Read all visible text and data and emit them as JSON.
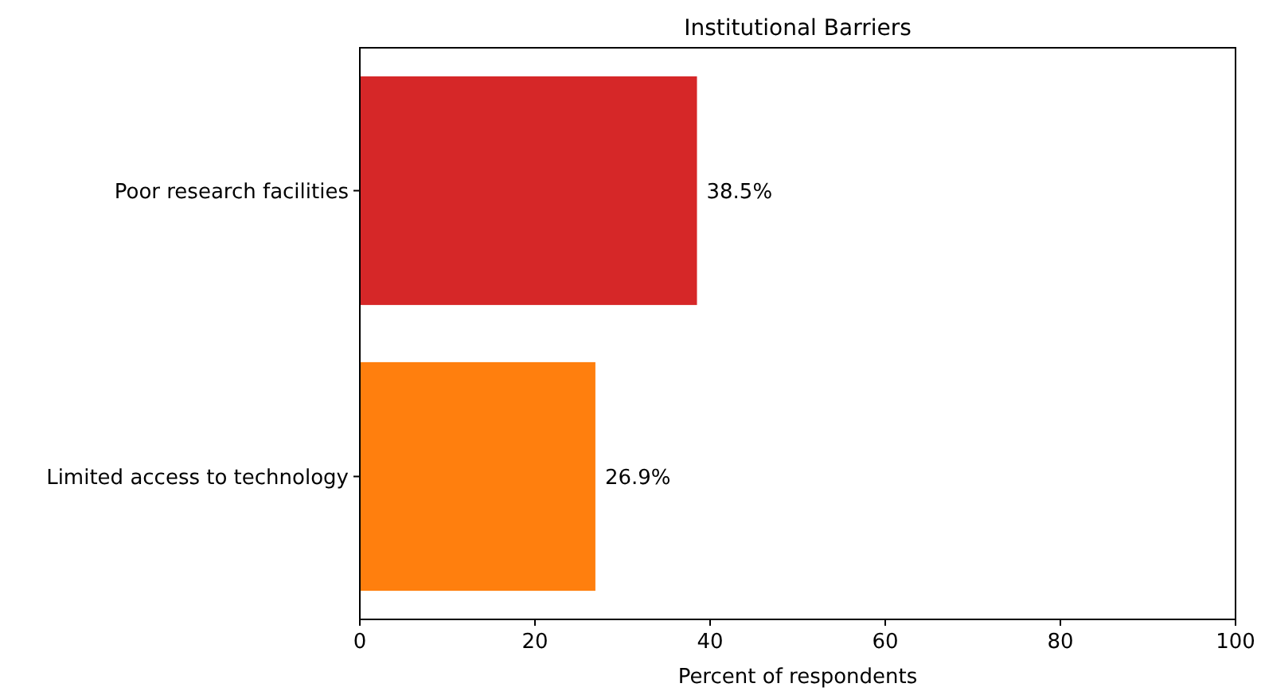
{
  "chart_data": {
    "type": "bar",
    "orientation": "horizontal",
    "title": "Institutional Barriers",
    "xlabel": "Percent of respondents",
    "categories": [
      "Poor research facilities",
      "Limited access to technology"
    ],
    "values": [
      38.5,
      26.9
    ],
    "colors": [
      "#d62728",
      "#ff7f0e"
    ],
    "value_labels": [
      "38.5%",
      "26.9%"
    ],
    "xlim": [
      0,
      100
    ],
    "xticks": [
      0,
      20,
      40,
      60,
      80,
      100
    ],
    "grid": false
  }
}
